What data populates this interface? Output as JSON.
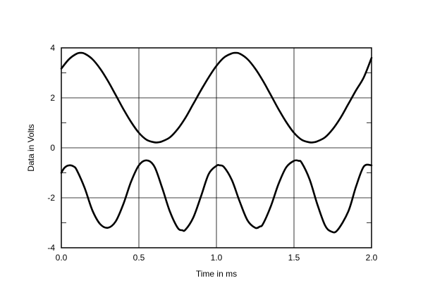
{
  "chart_data": {
    "type": "line",
    "title": "",
    "xlabel": "Time in ms",
    "ylabel": "Data in Volts",
    "xlim": [
      0.0,
      2.0
    ],
    "ylim": [
      -4,
      4
    ],
    "x_ticks": [
      "0.0",
      "0.5",
      "1.0",
      "1.5",
      "2.0"
    ],
    "x_tick_values": [
      0.0,
      0.5,
      1.0,
      1.5,
      2.0
    ],
    "y_ticks": [
      "4",
      "2",
      "0",
      "-2",
      "-4"
    ],
    "y_tick_values": [
      4,
      2,
      0,
      -2,
      -4
    ],
    "grid": true,
    "legend": "none",
    "series": [
      {
        "x": [
          0.0,
          0.05,
          0.1,
          0.125,
          0.15,
          0.2,
          0.25,
          0.3,
          0.35,
          0.4,
          0.45,
          0.5,
          0.55,
          0.6,
          0.625,
          0.65,
          0.7,
          0.75,
          0.8,
          0.85,
          0.9,
          0.95,
          1.0,
          1.05,
          1.1,
          1.125,
          1.15,
          1.2,
          1.25,
          1.3,
          1.35,
          1.4,
          1.45,
          1.5,
          1.55,
          1.6,
          1.625,
          1.65,
          1.7,
          1.75,
          1.8,
          1.85,
          1.9,
          1.95,
          2.0
        ],
        "values": [
          3.17,
          3.55,
          3.77,
          3.8,
          3.77,
          3.55,
          3.17,
          2.68,
          2.12,
          1.55,
          1.03,
          0.6,
          0.32,
          0.22,
          0.22,
          0.26,
          0.42,
          0.75,
          1.2,
          1.75,
          2.3,
          2.82,
          3.28,
          3.62,
          3.78,
          3.8,
          3.77,
          3.55,
          3.17,
          2.68,
          2.12,
          1.55,
          1.03,
          0.6,
          0.32,
          0.22,
          0.22,
          0.26,
          0.42,
          0.75,
          1.2,
          1.75,
          2.3,
          2.82,
          3.6
        ]
      },
      {
        "x": [
          0.0,
          0.02,
          0.05,
          0.08,
          0.1,
          0.15,
          0.2,
          0.25,
          0.3,
          0.35,
          0.4,
          0.45,
          0.5,
          0.55,
          0.6,
          0.65,
          0.7,
          0.75,
          0.78,
          0.8,
          0.85,
          0.9,
          0.95,
          1.0,
          1.02,
          1.05,
          1.1,
          1.15,
          1.2,
          1.25,
          1.28,
          1.3,
          1.35,
          1.4,
          1.45,
          1.5,
          1.53,
          1.55,
          1.6,
          1.65,
          1.7,
          1.74,
          1.78,
          1.85,
          1.9,
          1.95,
          2.0
        ],
        "values": [
          -1.0,
          -0.8,
          -0.7,
          -0.75,
          -0.9,
          -1.6,
          -2.5,
          -3.05,
          -3.2,
          -2.95,
          -2.25,
          -1.35,
          -0.7,
          -0.5,
          -0.75,
          -1.6,
          -2.55,
          -3.2,
          -3.3,
          -3.28,
          -2.8,
          -1.95,
          -1.05,
          -0.72,
          -0.7,
          -0.78,
          -1.3,
          -2.15,
          -2.9,
          -3.2,
          -3.15,
          -3.05,
          -2.35,
          -1.45,
          -0.78,
          -0.52,
          -0.52,
          -0.6,
          -1.25,
          -2.25,
          -3.1,
          -3.35,
          -3.3,
          -2.55,
          -1.55,
          -0.75,
          -0.7
        ]
      }
    ]
  }
}
